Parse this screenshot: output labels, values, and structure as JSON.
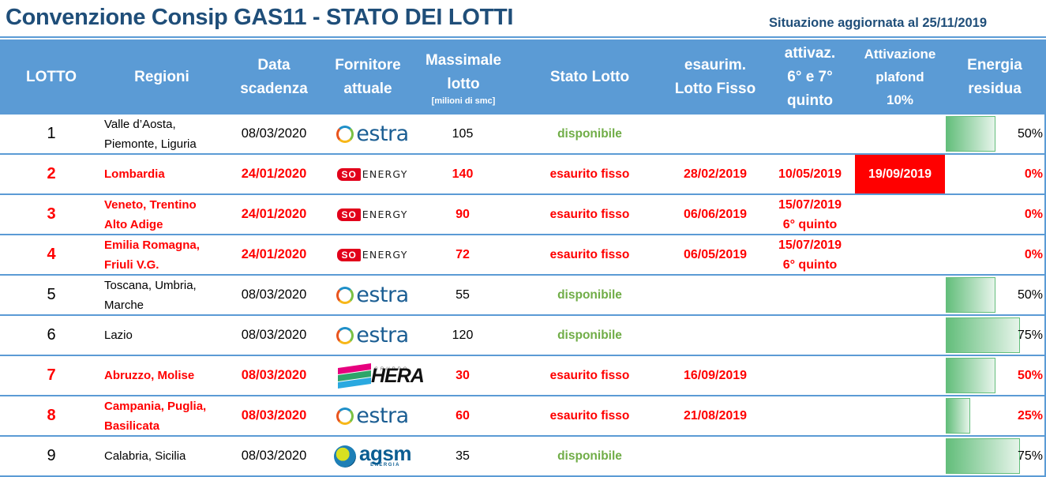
{
  "header": {
    "title": "Convenzione Consip GAS11 - STATO DEI LOTTI",
    "updated": "Situazione aggiornata al 25/11/2019"
  },
  "columns": {
    "lotto": "LOTTO",
    "regioni": "Regioni",
    "data_l1": "Data",
    "data_l2": "scadenza",
    "fornitore_l1": "Fornitore",
    "fornitore_l2": "attuale",
    "massimale_l1": "Massimale",
    "massimale_l2": "lotto",
    "massimale_unit": "[milioni di smc]",
    "stato": "Stato Lotto",
    "esaurim_l1": "esaurim.",
    "esaurim_l2": "Lotto Fisso",
    "attivaz_l1": "attivaz.",
    "attivaz_l2": "6° e 7°",
    "attivaz_l3": "quinto",
    "plafond_l1": "Attivazione",
    "plafond_l2": "plafond",
    "plafond_l3": "10%",
    "energia_l1": "Energia",
    "energia_l2": "residua"
  },
  "logos": {
    "estra": "estra",
    "so_box": "SO",
    "so_text": "ENERGY",
    "hera_gruppo": "GRUPPO",
    "hera": "HERA",
    "agsm": "agsm",
    "agsm_sub": "ENERGIA"
  },
  "colors": {
    "header_bg": "#5b9bd5",
    "title": "#1f4e79",
    "alert_red": "#ff0000",
    "available_green": "#70ad47",
    "databar_green": "#63be7b"
  },
  "rows": [
    {
      "lotto": "1",
      "regioni_l1": "Valle d’Aosta,",
      "regioni_l2": "Piemonte, Liguria",
      "scadenza": "08/03/2020",
      "fornitore": "estra",
      "massimale": "105",
      "stato": "disponibile",
      "esaurim": "",
      "attivaz_l1": "",
      "attivaz_l2": "",
      "plafond": "",
      "energia": "50%",
      "energia_pct": 50,
      "exhausted": false
    },
    {
      "lotto": "2",
      "regioni_l1": "Lombardia",
      "regioni_l2": "",
      "scadenza": "24/01/2020",
      "fornitore": "SO ENERGY",
      "massimale": "140",
      "stato": "esaurito fisso",
      "esaurim": "28/02/2019",
      "attivaz_l1": "10/05/2019",
      "attivaz_l2": "",
      "plafond": "19/09/2019",
      "energia": "0%",
      "energia_pct": 0,
      "exhausted": true
    },
    {
      "lotto": "3",
      "regioni_l1": "Veneto, Trentino",
      "regioni_l2": "Alto Adige",
      "scadenza": "24/01/2020",
      "fornitore": "SO ENERGY",
      "massimale": "90",
      "stato": "esaurito fisso",
      "esaurim": "06/06/2019",
      "attivaz_l1": "15/07/2019",
      "attivaz_l2": "6° quinto",
      "plafond": "",
      "energia": "0%",
      "energia_pct": 0,
      "exhausted": true
    },
    {
      "lotto": "4",
      "regioni_l1": "Emilia Romagna,",
      "regioni_l2": "Friuli V.G.",
      "scadenza": "24/01/2020",
      "fornitore": "SO ENERGY",
      "massimale": "72",
      "stato": "esaurito fisso",
      "esaurim": "06/05/2019",
      "attivaz_l1": "15/07/2019",
      "attivaz_l2": "6° quinto",
      "plafond": "",
      "energia": "0%",
      "energia_pct": 0,
      "exhausted": true
    },
    {
      "lotto": "5",
      "regioni_l1": "Toscana, Umbria,",
      "regioni_l2": "Marche",
      "scadenza": "08/03/2020",
      "fornitore": "estra",
      "massimale": "55",
      "stato": "disponibile",
      "esaurim": "",
      "attivaz_l1": "",
      "attivaz_l2": "",
      "plafond": "",
      "energia": "50%",
      "energia_pct": 50,
      "exhausted": false
    },
    {
      "lotto": "6",
      "regioni_l1": "Lazio",
      "regioni_l2": "",
      "scadenza": "08/03/2020",
      "fornitore": "estra",
      "massimale": "120",
      "stato": "disponibile",
      "esaurim": "",
      "attivaz_l1": "",
      "attivaz_l2": "",
      "plafond": "",
      "energia": "75%",
      "energia_pct": 75,
      "exhausted": false
    },
    {
      "lotto": "7",
      "regioni_l1": "Abruzzo, Molise",
      "regioni_l2": "",
      "scadenza": "08/03/2020",
      "fornitore": "Gruppo HERA",
      "massimale": "30",
      "stato": "esaurito fisso",
      "esaurim": "16/09/2019",
      "attivaz_l1": "",
      "attivaz_l2": "",
      "plafond": "",
      "energia": "50%",
      "energia_pct": 50,
      "exhausted": true
    },
    {
      "lotto": "8",
      "regioni_l1": "Campania, Puglia,",
      "regioni_l2": "Basilicata",
      "scadenza": "08/03/2020",
      "fornitore": "estra",
      "massimale": "60",
      "stato": "esaurito fisso",
      "esaurim": "21/08/2019",
      "attivaz_l1": "",
      "attivaz_l2": "",
      "plafond": "",
      "energia": "25%",
      "energia_pct": 25,
      "exhausted": true
    },
    {
      "lotto": "9",
      "regioni_l1": "Calabria, Sicilia",
      "regioni_l2": "",
      "scadenza": "08/03/2020",
      "fornitore": "agsm energia",
      "massimale": "35",
      "stato": "disponibile",
      "esaurim": "",
      "attivaz_l1": "",
      "attivaz_l2": "",
      "plafond": "",
      "energia": "75%",
      "energia_pct": 75,
      "exhausted": false
    }
  ]
}
